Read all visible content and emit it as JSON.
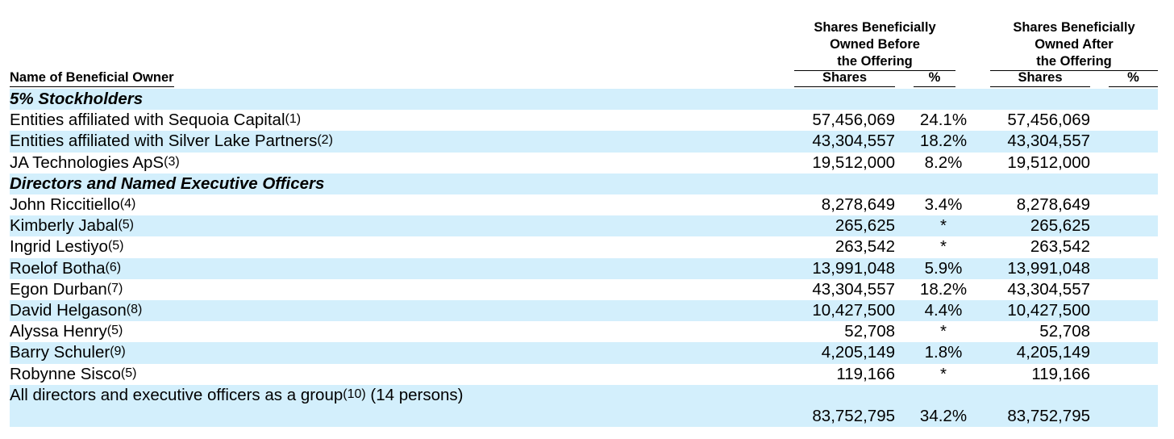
{
  "header": {
    "name_col": "Name of Beneficial Owner",
    "before": [
      "Shares Beneficially",
      "Owned Before",
      "the Offering"
    ],
    "after": [
      "Shares Beneficially",
      "Owned After",
      "the Offering"
    ],
    "columns": [
      "Shares",
      "%",
      "Shares",
      "%"
    ]
  },
  "table": {
    "rows": [
      {
        "section": "5% Stockholders"
      },
      {
        "name": "Entities affiliated with Sequoia Capital",
        "note": "(1)",
        "shares_before": "57,456,069",
        "pct_before": "24.1%",
        "shares_after": "57,456,069"
      },
      {
        "name": "Entities affiliated with Silver Lake Partners",
        "note": "(2)",
        "shares_before": "43,304,557",
        "pct_before": "18.2%",
        "shares_after": "43,304,557"
      },
      {
        "name": "JA Technologies ApS",
        "note": "(3)",
        "shares_before": "19,512,000",
        "pct_before": "8.2%",
        "shares_after": "19,512,000"
      },
      {
        "section": "Directors and Named Executive Officers"
      },
      {
        "name": "John Riccitiello",
        "note": "(4)",
        "shares_before": "8,278,649",
        "pct_before": "3.4%",
        "shares_after": "8,278,649"
      },
      {
        "name": "Kimberly Jabal",
        "note": "(5)",
        "shares_before": "265,625",
        "pct_before": "*",
        "shares_after": "265,625"
      },
      {
        "name": "Ingrid Lestiyo",
        "note": "(5)",
        "shares_before": "263,542",
        "pct_before": "*",
        "shares_after": "263,542"
      },
      {
        "name": "Roelof Botha",
        "note": "(6)",
        "shares_before": "13,991,048",
        "pct_before": "5.9%",
        "shares_after": "13,991,048"
      },
      {
        "name": "Egon Durban",
        "note": "(7)",
        "shares_before": "43,304,557",
        "pct_before": "18.2%",
        "shares_after": "43,304,557"
      },
      {
        "name": "David Helgason",
        "note": "(8)",
        "shares_before": "10,427,500",
        "pct_before": "4.4%",
        "shares_after": "10,427,500"
      },
      {
        "name": "Alyssa Henry",
        "note": "(5)",
        "shares_before": "52,708",
        "pct_before": "*",
        "shares_after": "52,708"
      },
      {
        "name": "Barry Schuler",
        "note": "(9)",
        "shares_before": "4,205,149",
        "pct_before": "1.8%",
        "shares_after": "4,205,149"
      },
      {
        "name": "Robynne Sisco",
        "note": "(5)",
        "shares_before": "119,166",
        "pct_before": "*",
        "shares_after": "119,166"
      },
      {
        "name": "All directors and executive officers as a group",
        "note": "(10)",
        "suffix": "(14 persons)",
        "shares_before": "83,752,795",
        "pct_before": "34.2%",
        "shares_after": "83,752,795",
        "tall": true
      }
    ]
  }
}
